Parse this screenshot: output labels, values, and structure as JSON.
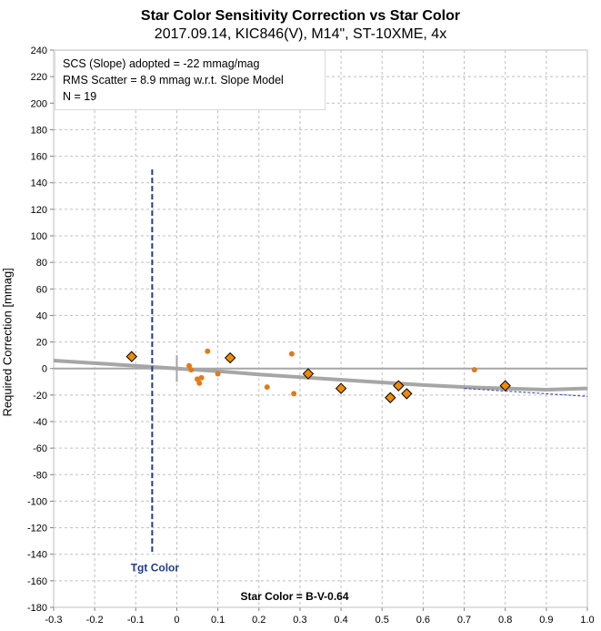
{
  "colors": {
    "marker_fill": "#f08a00",
    "marker_stroke": "#000000",
    "dot_fill": "#e07b1a",
    "curve": "#a6a6a6",
    "trend_dash": "#2f3fa0",
    "tgt_line": "#1f3a93",
    "grid": "#bfbfbf"
  },
  "chart_data": {
    "type": "scatter",
    "title": "Star Color Sensitivity Correction vs Star Color",
    "subtitle": "2017.09.14, KIC846(V), M14\", ST-10XME, 4x",
    "xlabel": "Star Color = B-V-0.64",
    "ylabel": "Required Correction [mmag]",
    "xlim": [
      -0.3,
      1.0
    ],
    "ylim": [
      -180,
      240
    ],
    "x_ticks": [
      "-0.3",
      "-0.2",
      "-0.1",
      "0",
      "0.1",
      "0.2",
      "0.3",
      "0.4",
      "0.5",
      "0.6",
      "0.7",
      "0.8",
      "0.9",
      "1.0"
    ],
    "y_ticks": [
      "240",
      "220",
      "200",
      "180",
      "160",
      "140",
      "120",
      "100",
      "80",
      "60",
      "40",
      "20",
      "0",
      "-20",
      "-40",
      "-60",
      "-80",
      "-100",
      "-120",
      "-140",
      "-160",
      "-180"
    ],
    "grid": true,
    "info": [
      "SCS (Slope) adopted  =  -22 mmag/mag",
      "RMS Scatter = 8.9 mmag w.r.t. Slope Model",
      "N = 19"
    ],
    "tgt_color": {
      "label": "Tgt Color",
      "x": -0.06,
      "y_range": [
        -140,
        150
      ]
    },
    "diamond_points": [
      [
        -0.11,
        9
      ],
      [
        0.13,
        8
      ],
      [
        0.32,
        -4
      ],
      [
        0.4,
        -15
      ],
      [
        0.52,
        -22
      ],
      [
        0.54,
        -13
      ],
      [
        0.56,
        -19
      ],
      [
        0.8,
        -13
      ]
    ],
    "dot_points": [
      [
        0.03,
        2
      ],
      [
        0.035,
        -1
      ],
      [
        0.05,
        -8
      ],
      [
        0.055,
        -11
      ],
      [
        0.06,
        -7
      ],
      [
        0.075,
        13
      ],
      [
        0.1,
        -4
      ],
      [
        0.22,
        -14
      ],
      [
        0.28,
        11
      ],
      [
        0.285,
        -19
      ],
      [
        0.725,
        -1
      ]
    ],
    "model_curve": [
      [
        -0.3,
        6
      ],
      [
        -0.2,
        4
      ],
      [
        -0.1,
        2
      ],
      [
        0.0,
        0
      ],
      [
        0.1,
        -2
      ],
      [
        0.2,
        -4.5
      ],
      [
        0.3,
        -6.5
      ],
      [
        0.4,
        -8.5
      ],
      [
        0.5,
        -10.5
      ],
      [
        0.6,
        -12.5
      ],
      [
        0.7,
        -14
      ],
      [
        0.8,
        -15
      ],
      [
        0.9,
        -16
      ],
      [
        1.0,
        -15
      ]
    ],
    "trend_dashed": [
      [
        0.7,
        -15
      ],
      [
        1.0,
        -21
      ]
    ],
    "zero_line": 0,
    "origin_marker": {
      "x": 0.0,
      "y_range": [
        -10,
        10
      ]
    }
  }
}
